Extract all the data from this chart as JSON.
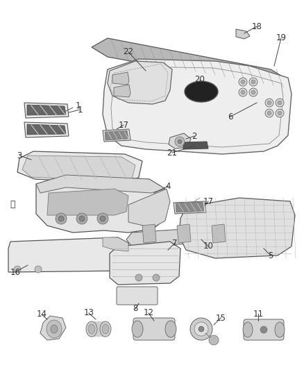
{
  "background_color": "#ffffff",
  "fig_width": 4.38,
  "fig_height": 5.33,
  "dpi": 100,
  "line_color": "#444444",
  "text_color": "#333333",
  "font_size": 8.5,
  "part_fill": "#f2f2f2",
  "part_dark": "#cccccc",
  "part_edge": "#555555"
}
